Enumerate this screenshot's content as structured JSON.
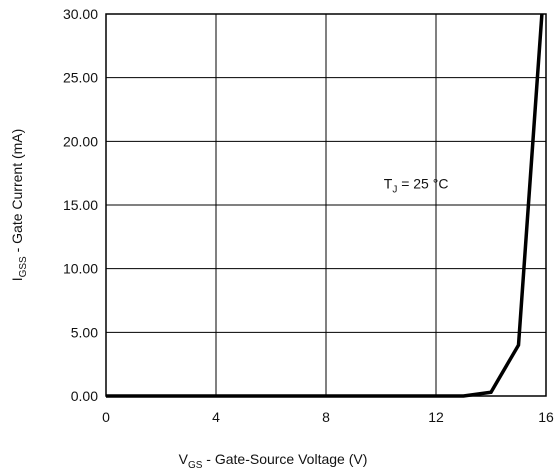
{
  "chart_data": {
    "type": "line",
    "title": "",
    "xlabel": {
      "main": "V",
      "sub": "GS",
      "rest": " - Gate-Source Voltage (V)"
    },
    "ylabel": {
      "main": "I",
      "sub": "GSS",
      "rest": " - Gate Current (mA)"
    },
    "xlim": [
      0,
      16
    ],
    "ylim": [
      0,
      30
    ],
    "x_ticks": [
      0,
      4,
      8,
      12,
      16
    ],
    "x_tick_labels": [
      "0",
      "4",
      "8",
      "12",
      "16"
    ],
    "y_ticks": [
      0,
      5,
      10,
      15,
      20,
      25,
      30
    ],
    "y_tick_labels": [
      "0.00",
      "5.00",
      "10.00",
      "15.00",
      "20.00",
      "25.00",
      "30.00"
    ],
    "grid": true,
    "annotation": {
      "main": "T",
      "sub": "J",
      "rest": " = 25 °C",
      "x": 10.1,
      "y": 16.3
    },
    "series": [
      {
        "color": "#000000",
        "x": [
          0,
          13,
          14,
          15,
          15.85
        ],
        "y": [
          0,
          0,
          0.3,
          4.0,
          30.0
        ]
      }
    ]
  }
}
